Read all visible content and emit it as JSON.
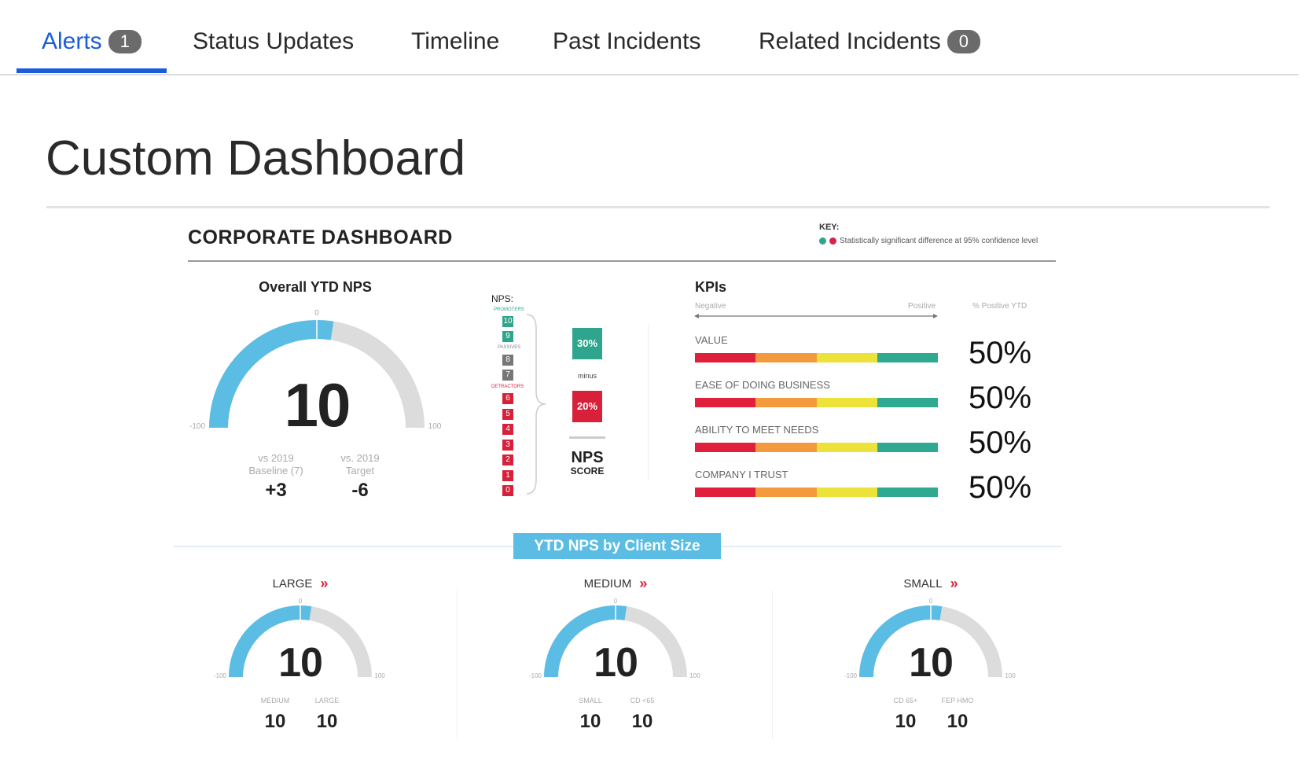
{
  "tabs": [
    {
      "label": "Alerts",
      "badge": "1",
      "active": true
    },
    {
      "label": "Status Updates"
    },
    {
      "label": "Timeline"
    },
    {
      "label": "Past Incidents"
    },
    {
      "label": "Related Incidents",
      "badge": "0"
    }
  ],
  "page_title": "Custom Dashboard",
  "dashboard": {
    "title": "CORPORATE DASHBOARD",
    "key": {
      "label": "KEY:",
      "text": "Statistically significant difference at 95% confidence level",
      "colors": [
        "#2fa58d",
        "#d6254a"
      ]
    },
    "overall": {
      "title": "Overall YTD NPS",
      "value": 10,
      "display": "10",
      "min_label": "-100",
      "max_label": "100",
      "mid_label": "0",
      "comparisons": [
        {
          "label1": "vs 2019",
          "label2": "Baseline (7)",
          "value": "+3"
        },
        {
          "label1": "vs. 2019",
          "label2": "Target",
          "value": "-6"
        }
      ]
    },
    "nps_scale": {
      "label": "NPS:",
      "promoters_label": "PROMOTERS",
      "passives_label": "PASSIVES",
      "detractors_label": "DETRACTORS",
      "promoters": [
        "10",
        "9"
      ],
      "passives": [
        "8",
        "7"
      ],
      "detractors": [
        "6",
        "5",
        "4",
        "3",
        "2",
        "1",
        "0"
      ],
      "promoter_pct": "30%",
      "minus": "minus",
      "detractor_pct": "20%",
      "score_label1": "NPS",
      "score_label2": "SCORE"
    },
    "kpis": {
      "title": "KPIs",
      "negative": "Negative",
      "positive": "Positive",
      "pct_header": "% Positive YTD",
      "bar_colors": [
        "#e0203a",
        "#f39a3e",
        "#ece23a",
        "#2fa98f"
      ],
      "items": [
        {
          "label": "VALUE",
          "pct": "50%"
        },
        {
          "label": "EASE OF DOING BUSINESS",
          "pct": "50%"
        },
        {
          "label": "ABILITY TO MEET NEEDS",
          "pct": "50%"
        },
        {
          "label": "COMPANY I TRUST",
          "pct": "50%"
        }
      ]
    },
    "by_size": {
      "title": "YTD NPS by Client Size",
      "segments": [
        {
          "label": "LARGE",
          "value": 10,
          "display": "10",
          "subs": [
            {
              "label": "MEDIUM",
              "value": "10"
            },
            {
              "label": "LARGE",
              "value": "10"
            }
          ]
        },
        {
          "label": "MEDIUM",
          "value": 10,
          "display": "10",
          "subs": [
            {
              "label": "SMALL",
              "value": "10"
            },
            {
              "label": "CD <65",
              "value": "10"
            }
          ]
        },
        {
          "label": "SMALL",
          "value": 10,
          "display": "10",
          "subs": [
            {
              "label": "CD 65+",
              "value": "10"
            },
            {
              "label": "FEP HMO",
              "value": "10"
            }
          ]
        }
      ],
      "min_label": "-100",
      "max_label": "100",
      "mid_label": "0",
      "chevron": "»"
    },
    "colors": {
      "gauge_fill": "#5bbde4",
      "gauge_track": "#dcdcdc",
      "promoter": "#2fa58d",
      "passive": "#777777",
      "detractor": "#d9203a",
      "section_label_bg": "#5bbde4"
    }
  }
}
